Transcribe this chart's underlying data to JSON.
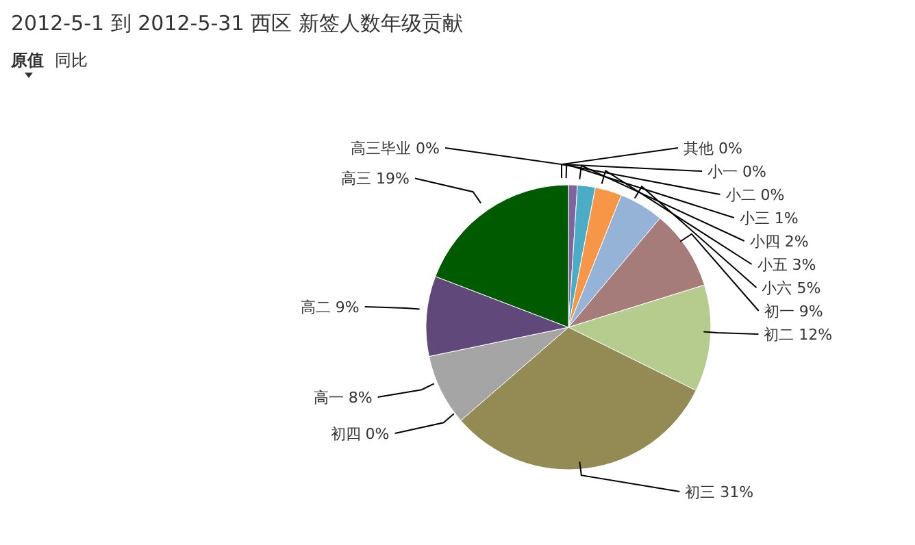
{
  "chart_data": {
    "type": "pie",
    "title": "2012-5-1 到 2012-5-31 西区 新签人数年级贡献",
    "annotations": [
      "原值",
      "同比"
    ],
    "categories": [
      "其他",
      "小一",
      "小二",
      "小三",
      "小四",
      "小五",
      "小六",
      "初一",
      "初二",
      "初三",
      "初四",
      "高一",
      "高二",
      "高三",
      "高三毕业"
    ],
    "values": [
      0,
      0,
      0,
      1,
      2,
      3,
      5,
      9,
      12,
      31,
      0,
      8,
      9,
      19,
      0
    ],
    "colors": [
      "#4f81bd",
      "#c0504d",
      "#9bbb59",
      "#8064a2",
      "#4bacc6",
      "#f79646",
      "#95b3d7",
      "#a57c7a",
      "#b5cc8e",
      "#948a54",
      "#e6b9b8",
      "#a5a5a5",
      "#60497a",
      "#005a00",
      "#1f497d"
    ],
    "value_labels": [
      "0%",
      "0%",
      "0%",
      "1%",
      "2%",
      "3%",
      "5%",
      "9%",
      "12%",
      "31%",
      "0%",
      "8%",
      "9%",
      "19%",
      "0%"
    ]
  }
}
